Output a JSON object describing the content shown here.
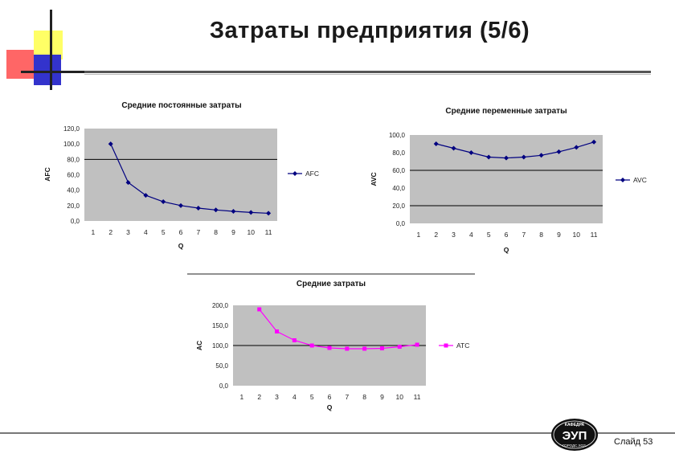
{
  "slide": {
    "title": "Затраты предприятия (5/6)",
    "slide_number": "Слайд 53",
    "logo_text": "ЭУП",
    "logo_top_text": "КАФЕДРА",
    "logo_bottom_text": "ГОРОДС.ХОЗ."
  },
  "colors": {
    "plot_bg": "#c0c0c0",
    "afc_series": "#000080",
    "avc_series": "#000080",
    "atc_series": "#ff00ff",
    "deco_yellow": "#ffff66",
    "deco_red": "#ff6666",
    "deco_blue": "#3333cc"
  },
  "chart_data": [
    {
      "type": "line",
      "title": "Средние постоянные затраты",
      "xlabel": "Q",
      "ylabel": "AFC",
      "categories": [
        "1",
        "2",
        "3",
        "4",
        "5",
        "6",
        "7",
        "8",
        "9",
        "10",
        "11"
      ],
      "yticks": [
        "0,0",
        "20,0",
        "40,0",
        "60,0",
        "80,0",
        "100,0",
        "120,0"
      ],
      "ylim": [
        0,
        120
      ],
      "reference_line": 80,
      "series": [
        {
          "name": "AFC",
          "x": [
            2,
            3,
            4,
            5,
            6,
            7,
            8,
            9,
            10,
            11
          ],
          "values": [
            100,
            50,
            33.3,
            25,
            20,
            16.7,
            14.3,
            12.5,
            11.1,
            10
          ]
        }
      ],
      "legend": "right"
    },
    {
      "type": "line",
      "title": "Средние переменные затраты",
      "xlabel": "Q",
      "ylabel": "AVC",
      "categories": [
        "1",
        "2",
        "3",
        "4",
        "5",
        "6",
        "7",
        "8",
        "9",
        "10",
        "11"
      ],
      "yticks": [
        "0,0",
        "20,0",
        "40,0",
        "60,0",
        "80,0",
        "100,0"
      ],
      "ylim": [
        0,
        100
      ],
      "reference_lines": [
        60,
        20
      ],
      "series": [
        {
          "name": "AVC",
          "x": [
            2,
            3,
            4,
            5,
            6,
            7,
            8,
            9,
            10,
            11
          ],
          "values": [
            90,
            85,
            80,
            75,
            74,
            75,
            77,
            81,
            86,
            92
          ]
        }
      ],
      "legend": "right"
    },
    {
      "type": "line",
      "title": "Средние затраты",
      "xlabel": "Q",
      "ylabel": "AC",
      "categories": [
        "1",
        "2",
        "3",
        "4",
        "5",
        "6",
        "7",
        "8",
        "9",
        "10",
        "11"
      ],
      "yticks": [
        "0,0",
        "50,0",
        "100,0",
        "150,0",
        "200,0"
      ],
      "ylim": [
        0,
        200
      ],
      "reference_line": 100,
      "series": [
        {
          "name": "ATC",
          "x": [
            2,
            3,
            4,
            5,
            6,
            7,
            8,
            9,
            10,
            11
          ],
          "values": [
            190,
            135,
            113,
            100,
            94,
            92,
            92,
            93,
            97,
            102
          ]
        }
      ],
      "legend": "right"
    }
  ]
}
